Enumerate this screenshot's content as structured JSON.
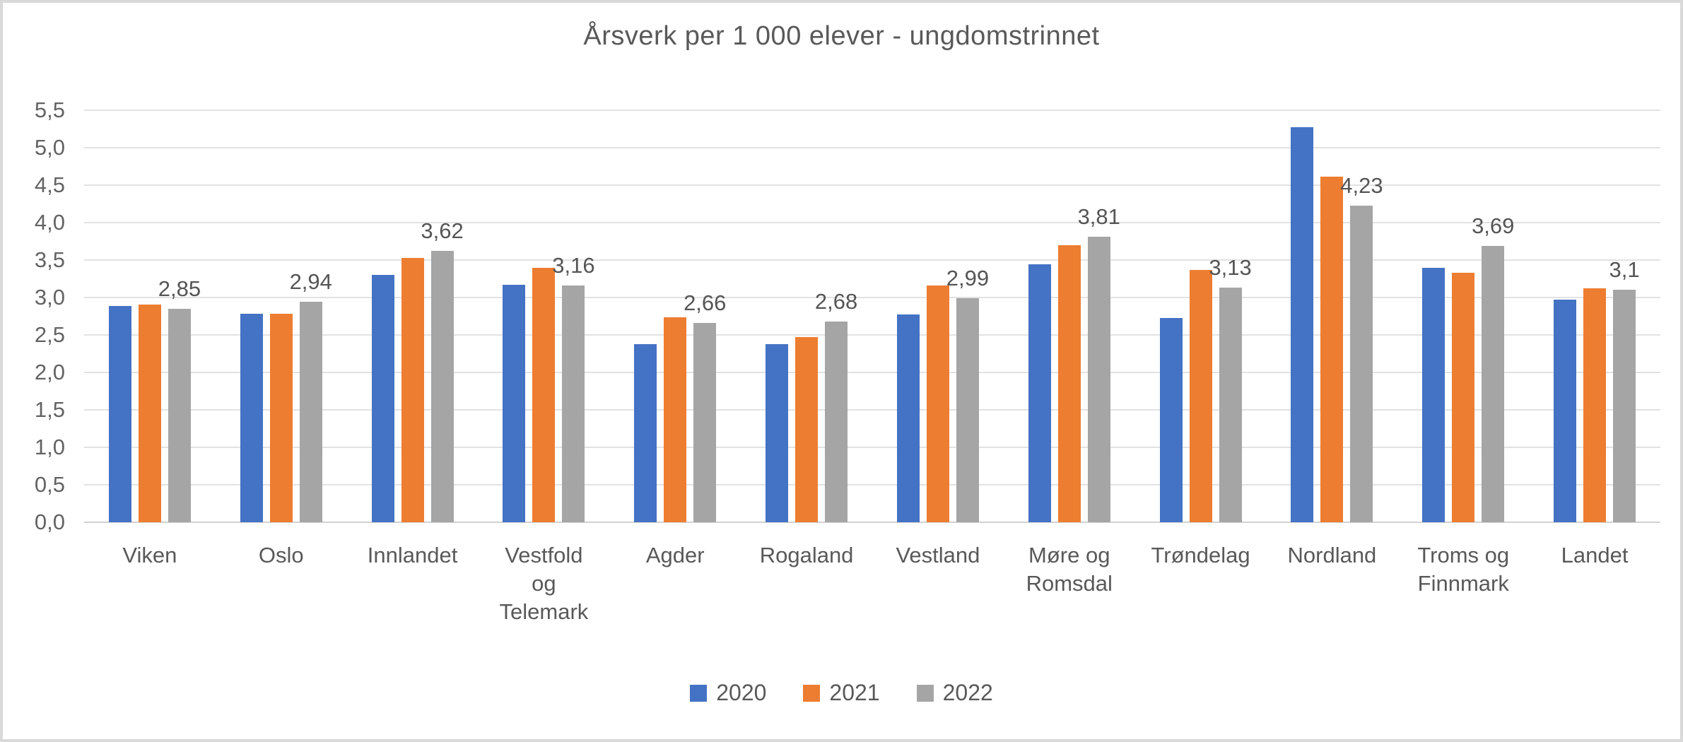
{
  "chart_data": {
    "type": "bar",
    "title": "Årsverk per 1 000 elever - ungdomstrinnet",
    "xlabel": "",
    "ylabel": "",
    "ylim": [
      0,
      5.5
    ],
    "y_tick_step": 0.5,
    "y_tick_labels": [
      "0,0",
      "0,5",
      "1,0",
      "1,5",
      "2,0",
      "2,5",
      "3,0",
      "3,5",
      "4,0",
      "4,5",
      "5,0",
      "5,5"
    ],
    "grid": true,
    "legend_position": "bottom",
    "categories": [
      "Viken",
      "Oslo",
      "Innlandet",
      "Vestfold og Telemark",
      "Agder",
      "Rogaland",
      "Vestland",
      "Møre og Romsdal",
      "Trøndelag",
      "Nordland",
      "Troms og Finnmark",
      "Landet"
    ],
    "category_label_lines": [
      [
        "Viken"
      ],
      [
        "Oslo"
      ],
      [
        "Innlandet"
      ],
      [
        "Vestfold",
        "og",
        "Telemark"
      ],
      [
        "Agder"
      ],
      [
        "Rogaland"
      ],
      [
        "Vestland"
      ],
      [
        "Møre og",
        "Romsdal"
      ],
      [
        "Trøndelag"
      ],
      [
        "Nordland"
      ],
      [
        "Troms og",
        "Finnmark"
      ],
      [
        "Landet"
      ]
    ],
    "series": [
      {
        "name": "2020",
        "color": "#4472C4",
        "values": [
          2.89,
          2.78,
          3.3,
          3.17,
          2.38,
          2.38,
          2.77,
          3.44,
          2.73,
          5.27,
          3.4,
          2.97
        ]
      },
      {
        "name": "2021",
        "color": "#ED7D31",
        "values": [
          2.91,
          2.78,
          3.53,
          3.4,
          2.74,
          2.47,
          3.16,
          3.7,
          3.37,
          4.61,
          3.33,
          3.12
        ]
      },
      {
        "name": "2022",
        "color": "#A5A5A5",
        "values": [
          2.85,
          2.94,
          3.62,
          3.16,
          2.66,
          2.68,
          2.99,
          3.81,
          3.13,
          4.23,
          3.69,
          3.1
        ]
      }
    ],
    "data_labels_series": "2022",
    "data_labels": [
      "2,85",
      "2,94",
      "3,62",
      "3,16",
      "2,66",
      "2,68",
      "2,99",
      "3,81",
      "3,13",
      "4,23",
      "3,69",
      "3,1"
    ]
  },
  "colors": {
    "background": "#ffffff",
    "frame_border": "#d9d9d9",
    "gridline": "#e2e2e2",
    "text": "#595959"
  }
}
